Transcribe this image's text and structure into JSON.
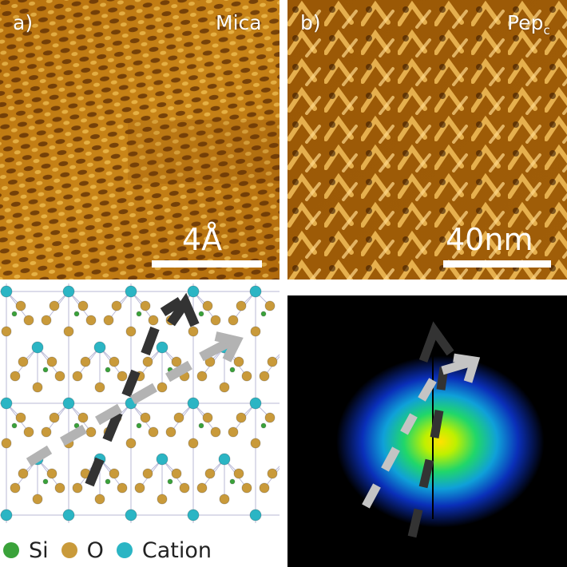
{
  "figure": {
    "panel_a": {
      "label": "a)",
      "material": "Mica",
      "scale": "4Å"
    },
    "panel_b": {
      "label": "b)",
      "material_base": "Pep",
      "material_sub": "c",
      "scale": "40nm"
    },
    "legend": [
      {
        "name": "Si",
        "color": "#3aa23a"
      },
      {
        "name": "O",
        "color": "#c99a3a"
      },
      {
        "name": "Cation",
        "color": "#2bb5c4"
      }
    ],
    "arrow_colors": {
      "dark": "#333333",
      "light": "#b3b3b3"
    }
  }
}
